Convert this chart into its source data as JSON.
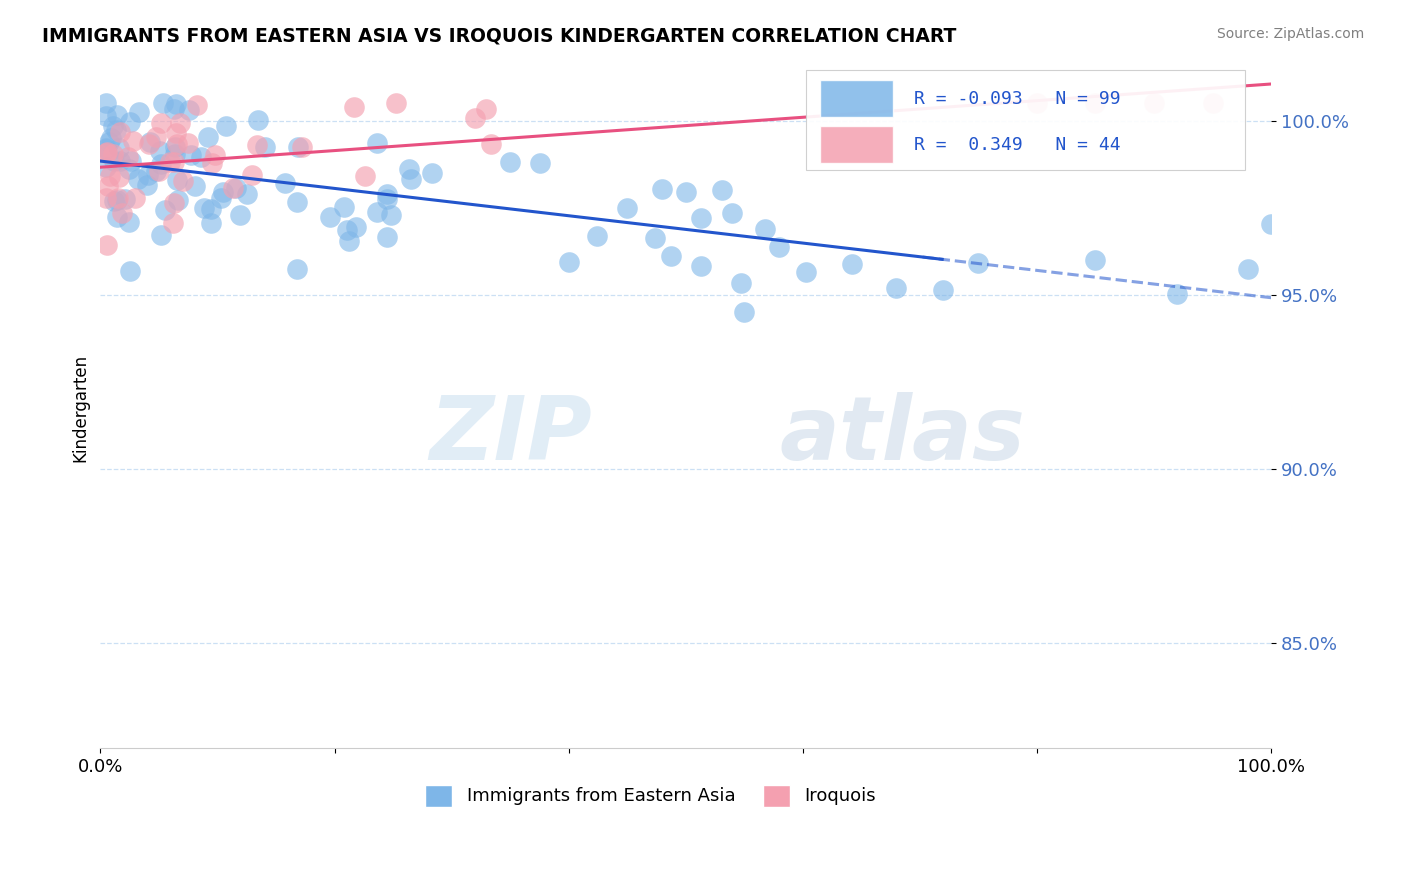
{
  "title": "IMMIGRANTS FROM EASTERN ASIA VS IROQUOIS KINDERGARTEN CORRELATION CHART",
  "source": "Source: ZipAtlas.com",
  "ylabel": "Kindergarten",
  "legend_blue_label": "Immigrants from Eastern Asia",
  "legend_pink_label": "Iroquois",
  "blue_R": -0.093,
  "blue_N": 99,
  "pink_R": 0.349,
  "pink_N": 44,
  "blue_color": "#7EB6E8",
  "pink_color": "#F4A0B0",
  "blue_line_color": "#2255CC",
  "pink_line_color": "#E85080",
  "watermark_zip": "ZIP",
  "watermark_atlas": "atlas",
  "xlim": [
    0.0,
    1.0
  ],
  "ylim": [
    0.82,
    1.015
  ],
  "yticks": [
    0.85,
    0.9,
    0.95,
    1.0
  ],
  "ytick_labels": [
    "85.0%",
    "90.0%",
    "95.0%",
    "100.0%"
  ],
  "xticks": [
    0.0,
    0.2,
    0.4,
    0.6,
    0.8,
    1.0
  ],
  "xtick_labels": [
    "0.0%",
    "",
    "",
    "",
    "",
    "100.0%"
  ]
}
